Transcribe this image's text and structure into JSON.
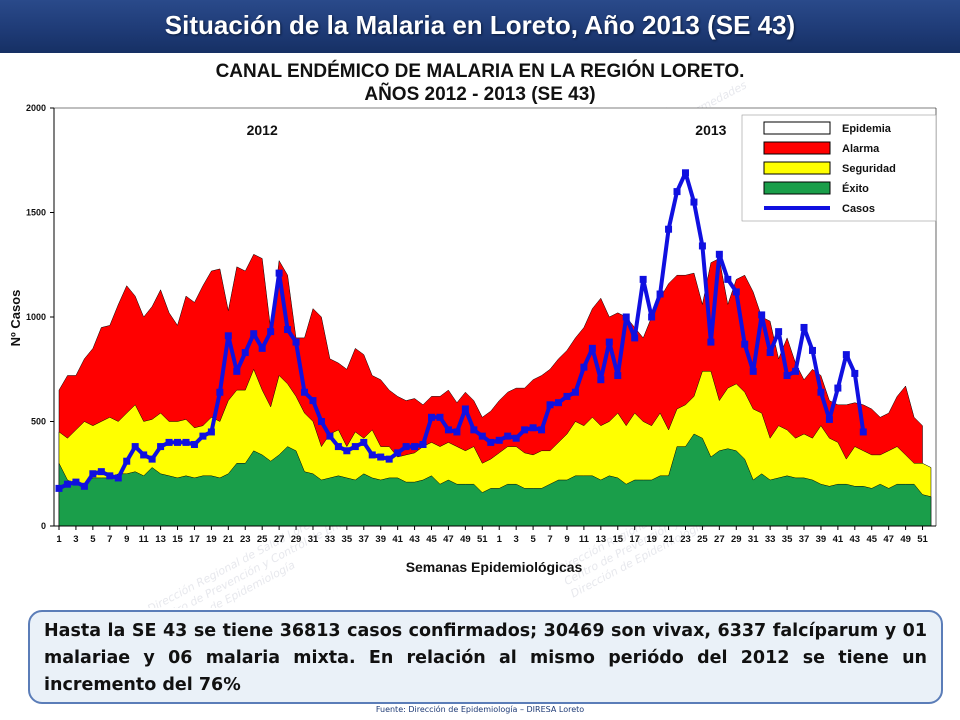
{
  "slide": {
    "title": "Situación de la Malaria en Loreto, Año 2013 (SE 43)",
    "note": "Hasta la SE 43 se tiene 36813 casos confirmados; 30469 son vivax, 6337 falcíparum y 01 malariae y 06 malaria mixta. En relación al mismo periódo del 2012 se tiene un incremento del 76%",
    "source": "Fuente: Dirección de Epidemiología – DIRESA Loreto",
    "watermark_lines": [
      "Dirección Regional de Salud Loreto",
      "Centro de Prevención y Control de Enfermedades",
      "Dirección de Epidemiología"
    ]
  },
  "colors": {
    "banner": "#1e3a75",
    "epidemia": "#ffffff",
    "alarma": "#ff0000",
    "seguridad": "#ffff00",
    "exito": "#1a9e4a",
    "casos": "#1010e0"
  },
  "chart_data": {
    "type": "area",
    "title": "CANAL ENDÉMICO DE MALARIA EN LA REGIÓN LORETO.",
    "subtitle": "AÑOS 2012 - 2013 (SE 43)",
    "xlabel": "Semanas Epidemiológicas",
    "ylabel": "Nº Casos",
    "ylim": [
      0,
      2000
    ],
    "yticks": [
      "0",
      "500",
      "1000",
      "1500",
      "2000"
    ],
    "xticks": [
      "1",
      "3",
      "5",
      "7",
      "9",
      "11",
      "13",
      "15",
      "17",
      "19",
      "21",
      "23",
      "25",
      "27",
      "29",
      "31",
      "33",
      "35",
      "37",
      "39",
      "41",
      "43",
      "45",
      "47",
      "49",
      "51",
      "1",
      "3",
      "5",
      "7",
      "9",
      "11",
      "13",
      "15",
      "17",
      "19",
      "21",
      "23",
      "25",
      "27",
      "29",
      "31",
      "33",
      "35",
      "37",
      "39",
      "41",
      "43",
      "45",
      "47",
      "49",
      "51"
    ],
    "year_labels": [
      "2012",
      "2013"
    ],
    "legend": {
      "position": "top-right",
      "items": [
        {
          "label": "Epidemia",
          "key": "epidemia",
          "kind": "box"
        },
        {
          "label": "Alarma",
          "key": "alarma",
          "kind": "box"
        },
        {
          "label": "Seguridad",
          "key": "seguridad",
          "kind": "box"
        },
        {
          "label": "Éxito",
          "key": "exito",
          "kind": "box"
        },
        {
          "label": "Casos",
          "key": "casos",
          "kind": "line"
        }
      ]
    },
    "grid": false,
    "x_weeks": 104,
    "series": [
      {
        "name": "Alarma",
        "values": [
          650,
          720,
          720,
          800,
          850,
          950,
          960,
          1060,
          1150,
          1100,
          1000,
          1050,
          1130,
          1020,
          960,
          1100,
          1070,
          1150,
          1220,
          1230,
          1030,
          1240,
          1220,
          1300,
          1280,
          940,
          1270,
          1200,
          900,
          900,
          1040,
          1000,
          800,
          780,
          750,
          850,
          820,
          720,
          700,
          650,
          620,
          600,
          610,
          580,
          620,
          620,
          650,
          590,
          640,
          600,
          520,
          550,
          600,
          640,
          660,
          660,
          700,
          720,
          750,
          800,
          840,
          900,
          950,
          1040,
          1090,
          1000,
          1020,
          1000,
          950,
          900,
          1000,
          1090,
          1160,
          1200,
          1200,
          1210,
          1060,
          1260,
          1280,
          1060,
          1180,
          1200,
          1120,
          1000,
          980,
          800,
          900,
          780,
          700,
          750,
          720,
          600,
          580,
          580,
          590,
          580,
          560,
          520,
          540,
          620,
          670,
          520,
          480
        ]
      },
      {
        "name": "Seguridad",
        "values": [
          450,
          420,
          460,
          500,
          480,
          500,
          520,
          500,
          540,
          580,
          500,
          510,
          540,
          500,
          500,
          510,
          470,
          480,
          520,
          500,
          600,
          650,
          650,
          750,
          650,
          570,
          720,
          680,
          620,
          540,
          500,
          380,
          440,
          460,
          380,
          450,
          420,
          460,
          380,
          380,
          330,
          340,
          350,
          380,
          400,
          380,
          400,
          380,
          360,
          380,
          300,
          320,
          350,
          380,
          380,
          350,
          340,
          360,
          360,
          400,
          440,
          500,
          480,
          520,
          480,
          500,
          540,
          480,
          540,
          500,
          480,
          540,
          460,
          560,
          580,
          620,
          740,
          740,
          600,
          660,
          680,
          640,
          560,
          540,
          420,
          480,
          460,
          420,
          440,
          420,
          480,
          420,
          400,
          320,
          380,
          360,
          340,
          340,
          360,
          380,
          340,
          300,
          300,
          280
        ]
      },
      {
        "name": "Éxito",
        "values": [
          300,
          220,
          200,
          200,
          230,
          230,
          230,
          250,
          250,
          260,
          240,
          280,
          250,
          240,
          230,
          240,
          230,
          240,
          240,
          230,
          250,
          300,
          300,
          360,
          340,
          310,
          340,
          380,
          360,
          260,
          250,
          220,
          230,
          240,
          230,
          220,
          250,
          230,
          220,
          230,
          230,
          210,
          210,
          220,
          240,
          200,
          220,
          200,
          200,
          200,
          160,
          180,
          180,
          200,
          200,
          180,
          180,
          180,
          200,
          220,
          220,
          240,
          240,
          240,
          220,
          240,
          230,
          200,
          220,
          220,
          220,
          240,
          240,
          380,
          380,
          440,
          420,
          330,
          360,
          370,
          360,
          320,
          220,
          250,
          220,
          230,
          240,
          230,
          230,
          220,
          200,
          190,
          200,
          200,
          190,
          190,
          180,
          200,
          180,
          200,
          200,
          200,
          150,
          140
        ]
      },
      {
        "name": "Casos",
        "values": [
          180,
          200,
          210,
          190,
          250,
          260,
          240,
          230,
          310,
          380,
          340,
          320,
          380,
          400,
          400,
          400,
          390,
          430,
          450,
          640,
          910,
          740,
          830,
          920,
          850,
          930,
          1210,
          940,
          880,
          640,
          600,
          500,
          430,
          380,
          360,
          380,
          400,
          340,
          330,
          320,
          350,
          380,
          380,
          390,
          520,
          520,
          460,
          450,
          560,
          460,
          430,
          400,
          410,
          430,
          420,
          460,
          470,
          460,
          580,
          590,
          620,
          640,
          760,
          850,
          700,
          880,
          720,
          1000,
          900,
          1180,
          1000,
          1110,
          1420,
          1600,
          1690,
          1550,
          1340,
          880,
          1300,
          1180,
          1120,
          870,
          740,
          1010,
          830,
          930,
          720,
          740,
          950,
          840,
          640,
          510,
          660,
          820,
          730,
          450
        ]
      }
    ]
  }
}
